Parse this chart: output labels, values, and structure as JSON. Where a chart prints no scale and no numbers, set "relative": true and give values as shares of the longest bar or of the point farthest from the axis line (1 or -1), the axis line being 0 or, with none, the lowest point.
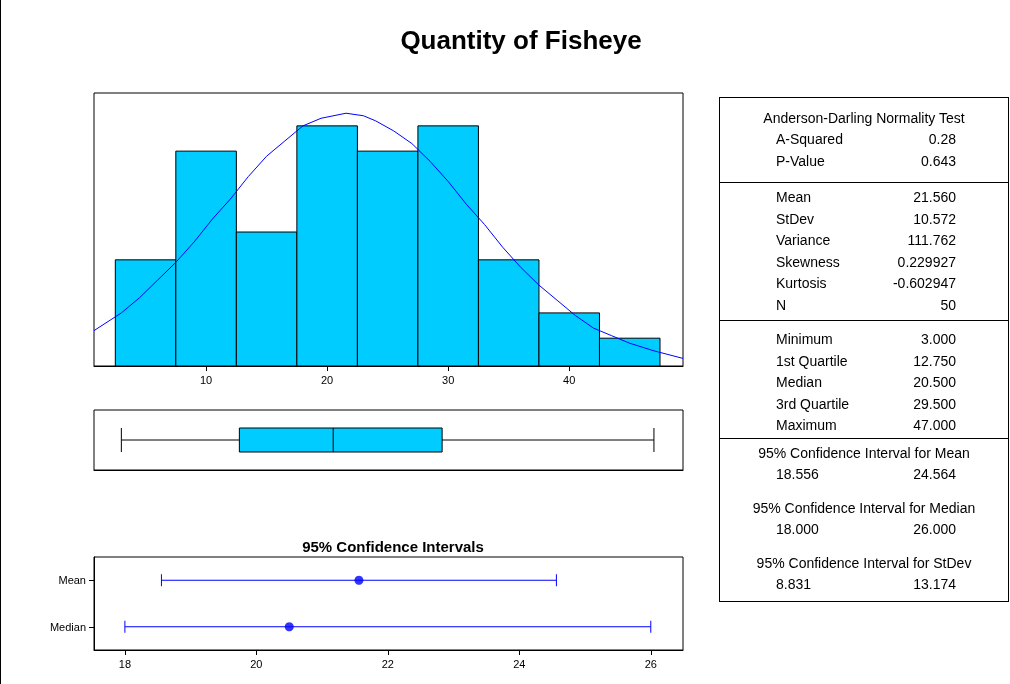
{
  "chart_data": [
    {
      "type": "histogram",
      "title": "Quantity of Fisheye",
      "relative": true,
      "bins": [
        2.5,
        7.5,
        12.5,
        17.5,
        22.5,
        27.5,
        32.5,
        37.5,
        42.5,
        47.5
      ],
      "values": [
        0.42,
        0.85,
        0.53,
        0.95,
        0.85,
        0.95,
        0.42,
        0.21,
        0.11
      ],
      "color": "#00ccff",
      "xlim": [
        0.74,
        49.4
      ],
      "xticks": [
        10,
        20,
        30,
        40
      ],
      "grid": false,
      "marker": "none",
      "series": [
        {
          "type": "line",
          "color": "#0000ff",
          "x": [
            0.74,
            3,
            4.5,
            6,
            7.5,
            9,
            10.5,
            12,
            13.5,
            15,
            16.5,
            18,
            19.5,
            21.56,
            23,
            24,
            25.5,
            27,
            28.5,
            30,
            31.5,
            33,
            34.5,
            36,
            37.5,
            39,
            40.5,
            42,
            43.5,
            45,
            47,
            49.4
          ],
          "values": [
            0.14,
            0.21,
            0.27,
            0.34,
            0.41,
            0.49,
            0.58,
            0.66,
            0.75,
            0.83,
            0.89,
            0.95,
            0.98,
            1,
            0.99,
            0.97,
            0.93,
            0.88,
            0.81,
            0.73,
            0.64,
            0.56,
            0.47,
            0.39,
            0.32,
            0.26,
            0.2,
            0.15,
            0.12,
            0.09,
            0.06,
            0.03
          ]
        }
      ]
    },
    {
      "type": "box",
      "orientation": "horizontal",
      "categories": [
        null
      ],
      "boxes": [
        {
          "low": 3,
          "q1": 12.75,
          "median": 20.5,
          "q3": 29.5,
          "high": 47
        }
      ],
      "color": "#00ccff",
      "xlim": [
        0.74,
        49.4
      ],
      "tick_labels": false,
      "grid": false
    },
    {
      "type": "scatter",
      "title": "95% Confidence Intervals",
      "orientation": "horizontal",
      "categories": [
        "Mean",
        "Median"
      ],
      "values": [
        21.56,
        20.5
      ],
      "errors": [
        [
          18.556,
          24.564
        ],
        [
          18,
          26
        ]
      ],
      "color": "#0000ff",
      "marker": "circle",
      "xlim": [
        17.53,
        26.49
      ],
      "xticks": [
        18,
        20,
        22,
        24,
        26
      ],
      "grid": false
    },
    {
      "type": "other",
      "title": "Anderson-Darling Normality Test",
      "annotations": [
        "A-Squared",
        "0.28",
        "P-Value",
        "0.643"
      ]
    },
    {
      "type": "other",
      "annotations": [
        "Mean",
        "21.560",
        "StDev",
        "10.572",
        "Variance",
        "111.762",
        "Skewness",
        "0.229927",
        "Kurtosis",
        "-0.602947",
        "N",
        "50"
      ]
    },
    {
      "type": "other",
      "annotations": [
        "Minimum",
        "3.000",
        "1st Quartile",
        "12.750",
        "Median",
        "20.500",
        "3rd Quartile",
        "29.500",
        "Maximum",
        "47.000"
      ]
    },
    {
      "type": "other",
      "title": "95% Confidence Interval for Mean",
      "annotations": [
        "18.556",
        "24.564"
      ]
    },
    {
      "type": "other",
      "title": "95% Confidence Interval for Median",
      "annotations": [
        "18.000",
        "26.000"
      ]
    },
    {
      "type": "other",
      "title": "95% Confidence Interval for StDev",
      "annotations": [
        "8.831",
        "13.174"
      ]
    }
  ]
}
